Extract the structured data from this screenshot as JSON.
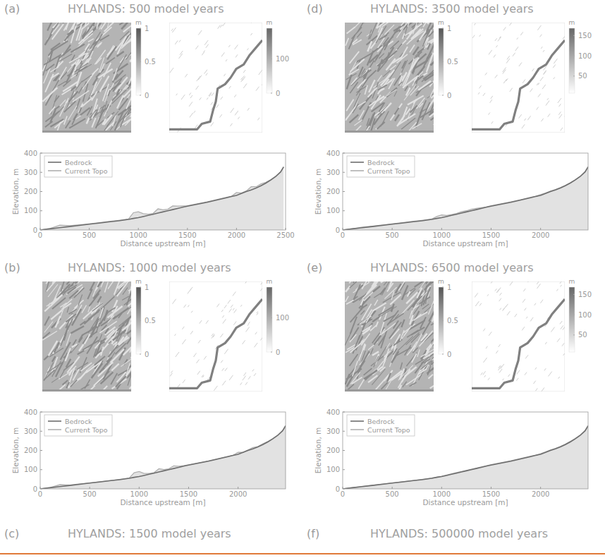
{
  "chart_data": [
    {
      "type": "line",
      "panel": "(a)",
      "title": "HYLANDS: 500 model years",
      "colorbars": [
        {
          "unit": "m",
          "range": [
            0,
            1
          ],
          "ticks": [
            0,
            0.5,
            1
          ]
        },
        {
          "unit": "m",
          "range": [
            0,
            190
          ],
          "ticks": [
            0,
            100
          ]
        }
      ],
      "xlabel": "Distance upstream [m]",
      "ylabel": "Elevation, m",
      "x": [
        0,
        100,
        200,
        300,
        400,
        500,
        600,
        700,
        800,
        900,
        950,
        1000,
        1050,
        1100,
        1150,
        1200,
        1250,
        1300,
        1350,
        1400,
        1450,
        1500,
        1600,
        1700,
        1800,
        1900,
        1950,
        2000,
        2050,
        2100,
        2150,
        2200,
        2250,
        2300,
        2350,
        2400,
        2450,
        2480
      ],
      "series": [
        {
          "name": "Bedrock",
          "color": "#6e6e6e",
          "values": [
            0,
            6,
            12,
            18,
            24,
            30,
            36,
            42,
            48,
            55,
            60,
            64,
            70,
            76,
            82,
            88,
            94,
            100,
            106,
            112,
            118,
            124,
            134,
            144,
            156,
            168,
            174,
            180,
            190,
            200,
            208,
            218,
            230,
            244,
            260,
            278,
            302,
            328
          ]
        },
        {
          "name": "Current Topo",
          "color": "#b0b0b0",
          "values": [
            0,
            8,
            25,
            22,
            27,
            32,
            38,
            44,
            50,
            57,
            90,
            95,
            85,
            82,
            86,
            110,
            105,
            108,
            125,
            124,
            125,
            126,
            136,
            146,
            158,
            170,
            176,
            195,
            192,
            203,
            225,
            225,
            240,
            248,
            262,
            280,
            303,
            328
          ]
        }
      ],
      "xlim": [
        0,
        2500
      ],
      "ylim": [
        0,
        400
      ],
      "xticks": [
        0,
        500,
        1000,
        1500,
        2000,
        2500
      ],
      "yticks": [
        0,
        100,
        200,
        300,
        400
      ],
      "legend": "top-left"
    },
    {
      "type": "line",
      "panel": "(b)",
      "title": "HYLANDS: 1000 model years",
      "colorbars": [
        {
          "unit": "m",
          "range": [
            0,
            1
          ],
          "ticks": [
            0,
            0.5,
            1
          ]
        },
        {
          "unit": "m",
          "range": [
            0,
            190
          ],
          "ticks": [
            0,
            100
          ]
        }
      ],
      "xlabel": "Distance upstream [m]",
      "ylabel": "Elevation, m",
      "x": [
        0,
        100,
        200,
        300,
        400,
        500,
        600,
        700,
        800,
        900,
        950,
        1000,
        1050,
        1100,
        1150,
        1200,
        1250,
        1300,
        1350,
        1400,
        1450,
        1500,
        1600,
        1700,
        1800,
        1900,
        1950,
        2000,
        2050,
        2100,
        2150,
        2200,
        2250,
        2300,
        2350,
        2400,
        2450,
        2480
      ],
      "series": [
        {
          "name": "Bedrock",
          "color": "#6e6e6e",
          "values": [
            0,
            6,
            12,
            18,
            24,
            30,
            36,
            42,
            48,
            55,
            60,
            64,
            70,
            76,
            82,
            88,
            94,
            100,
            106,
            112,
            118,
            124,
            134,
            144,
            156,
            168,
            174,
            180,
            190,
            200,
            208,
            218,
            230,
            244,
            260,
            278,
            302,
            328
          ]
        },
        {
          "name": "Current Topo",
          "color": "#b0b0b0",
          "values": [
            0,
            7,
            22,
            20,
            26,
            31,
            37,
            43,
            49,
            56,
            84,
            90,
            80,
            80,
            84,
            105,
            100,
            104,
            120,
            118,
            121,
            125,
            135,
            145,
            157,
            169,
            175,
            190,
            190,
            202,
            215,
            220,
            235,
            246,
            261,
            279,
            303,
            328
          ]
        }
      ],
      "xlim": [
        0,
        2480
      ],
      "ylim": [
        0,
        400
      ],
      "xticks": [
        0,
        500,
        1000,
        1500,
        2000
      ],
      "yticks": [
        0,
        100,
        200,
        300,
        400
      ],
      "legend": "top-left"
    },
    {
      "type": "line",
      "panel": "(c)",
      "title": "HYLANDS: 1500 model years"
    },
    {
      "type": "line",
      "panel": "(d)",
      "title": "HYLANDS: 3500 model years",
      "colorbars": [
        {
          "unit": "m",
          "range": [
            0,
            1
          ],
          "ticks": [
            0,
            0.5,
            1
          ]
        },
        {
          "unit": "m",
          "range": [
            8,
            168
          ],
          "ticks": [
            50,
            100,
            150
          ]
        }
      ],
      "xlabel": "Distance upstream [m]",
      "ylabel": "Elevation, m",
      "x": [
        0,
        100,
        200,
        300,
        400,
        500,
        600,
        700,
        800,
        900,
        950,
        1000,
        1050,
        1100,
        1150,
        1200,
        1250,
        1300,
        1350,
        1400,
        1450,
        1500,
        1600,
        1700,
        1800,
        1900,
        1950,
        2000,
        2050,
        2100,
        2150,
        2200,
        2250,
        2300,
        2350,
        2400,
        2450,
        2480
      ],
      "series": [
        {
          "name": "Bedrock",
          "color": "#6e6e6e",
          "values": [
            0,
            6,
            12,
            18,
            24,
            30,
            36,
            42,
            48,
            55,
            60,
            64,
            70,
            76,
            82,
            88,
            94,
            100,
            106,
            112,
            118,
            124,
            134,
            144,
            156,
            168,
            174,
            180,
            190,
            200,
            208,
            218,
            230,
            244,
            260,
            278,
            302,
            328
          ]
        },
        {
          "name": "Current Topo",
          "color": "#b0b0b0",
          "values": [
            0,
            7,
            15,
            20,
            26,
            32,
            38,
            44,
            50,
            57,
            70,
            78,
            76,
            80,
            86,
            95,
            100,
            108,
            112,
            116,
            120,
            126,
            136,
            146,
            157,
            170,
            176,
            184,
            192,
            202,
            211,
            221,
            232,
            246,
            261,
            279,
            303,
            328
          ]
        }
      ],
      "xlim": [
        0,
        2480
      ],
      "ylim": [
        0,
        400
      ],
      "xticks": [
        0,
        500,
        1000,
        1500,
        2000
      ],
      "yticks": [
        0,
        100,
        200,
        300,
        400
      ],
      "legend": "top-left"
    },
    {
      "type": "line",
      "panel": "(e)",
      "title": "HYLANDS: 6500 model years",
      "colorbars": [
        {
          "unit": "m",
          "range": [
            0,
            1
          ],
          "ticks": [
            0,
            0.5,
            1
          ]
        },
        {
          "unit": "m",
          "range": [
            8,
            168
          ],
          "ticks": [
            50,
            100,
            150
          ]
        }
      ],
      "xlabel": "Distance upstream [m]",
      "ylabel": "Elevation, m",
      "x": [
        0,
        100,
        200,
        300,
        400,
        500,
        600,
        700,
        800,
        900,
        950,
        1000,
        1050,
        1100,
        1150,
        1200,
        1250,
        1300,
        1350,
        1400,
        1450,
        1500,
        1600,
        1700,
        1800,
        1900,
        1950,
        2000,
        2050,
        2100,
        2150,
        2200,
        2250,
        2300,
        2350,
        2400,
        2450,
        2480
      ],
      "series": [
        {
          "name": "Bedrock",
          "color": "#6e6e6e",
          "values": [
            0,
            6,
            12,
            18,
            24,
            30,
            36,
            42,
            48,
            55,
            60,
            64,
            70,
            76,
            82,
            88,
            94,
            100,
            106,
            112,
            118,
            124,
            134,
            144,
            156,
            168,
            174,
            180,
            190,
            200,
            208,
            218,
            230,
            244,
            260,
            278,
            302,
            328
          ]
        },
        {
          "name": "Current Topo",
          "color": "#b0b0b0",
          "values": [
            0,
            7,
            13,
            19,
            25,
            31,
            37,
            43,
            49,
            56,
            61,
            66,
            72,
            78,
            85,
            90,
            96,
            102,
            108,
            114,
            120,
            126,
            136,
            146,
            158,
            170,
            176,
            183,
            192,
            202,
            211,
            221,
            233,
            247,
            262,
            280,
            303,
            328
          ]
        }
      ],
      "xlim": [
        0,
        2480
      ],
      "ylim": [
        0,
        400
      ],
      "xticks": [
        0,
        500,
        1000,
        1500,
        2000
      ],
      "yticks": [
        0,
        100,
        200,
        300,
        400
      ],
      "legend": "top-left"
    },
    {
      "type": "line",
      "panel": "(f)",
      "title": "HYLANDS: 500000 model years"
    }
  ]
}
